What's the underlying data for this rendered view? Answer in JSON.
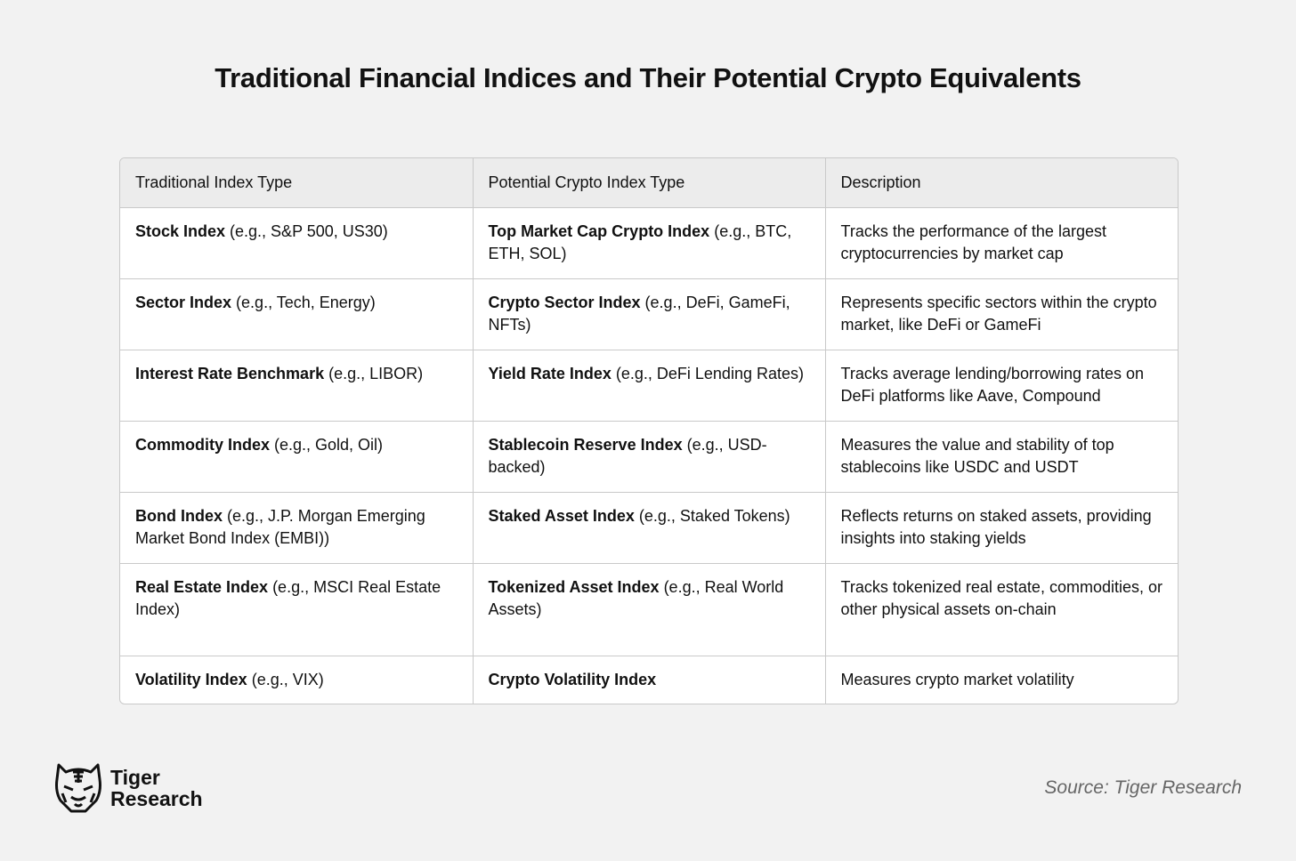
{
  "title": "Traditional Financial Indices and Their Potential Crypto Equivalents",
  "table": {
    "headers": [
      "Traditional Index Type",
      "Potential Crypto Index Type",
      "Description"
    ],
    "rows": [
      {
        "cells": [
          {
            "bold": "Stock Index",
            "rest": " (e.g., S&P 500, US30)"
          },
          {
            "bold": "Top Market Cap Crypto Index",
            "rest": " (e.g., BTC, ETH, SOL)"
          },
          {
            "bold": "",
            "rest": "Tracks the performance of the largest cryptocurrencies by market cap"
          }
        ]
      },
      {
        "cells": [
          {
            "bold": "Sector Index",
            "rest": " (e.g., Tech, Energy)"
          },
          {
            "bold": "Crypto Sector Index",
            "rest": " (e.g., DeFi, GameFi, NFTs)"
          },
          {
            "bold": "",
            "rest": "Represents specific sectors within the crypto market, like DeFi or GameFi"
          }
        ]
      },
      {
        "cells": [
          {
            "bold": "Interest Rate Benchmark",
            "rest": " (e.g., LIBOR)"
          },
          {
            "bold": "Yield Rate Index",
            "rest": " (e.g., DeFi Lending Rates)"
          },
          {
            "bold": "",
            "rest": "Tracks average lending/borrowing rates on DeFi platforms like Aave, Compound"
          }
        ]
      },
      {
        "cells": [
          {
            "bold": "Commodity Index",
            "rest": " (e.g., Gold, Oil)"
          },
          {
            "bold": "Stablecoin Reserve Index",
            "rest": " (e.g., USD-backed)"
          },
          {
            "bold": "",
            "rest": "Measures the value and stability of top stablecoins like USDC and USDT"
          }
        ]
      },
      {
        "cells": [
          {
            "bold": "Bond Index",
            "rest": " (e.g., J.P. Morgan Emerging Market Bond Index (EMBI))"
          },
          {
            "bold": "Staked Asset Index",
            "rest": " (e.g., Staked Tokens)"
          },
          {
            "bold": "",
            "rest": "Reflects returns on staked assets, providing insights into staking yields"
          }
        ]
      },
      {
        "cells": [
          {
            "bold": "Real Estate Index",
            "rest": " (e.g., MSCI Real Estate Index)"
          },
          {
            "bold": "Tokenized Asset Index",
            "rest": " (e.g., Real World Assets)"
          },
          {
            "bold": "",
            "rest": "Tracks tokenized real estate, commodities, or other physical assets on-chain"
          }
        ]
      },
      {
        "cells": [
          {
            "bold": "Volatility Index",
            "rest": " (e.g., VIX)"
          },
          {
            "bold": "Crypto Volatility Index",
            "rest": ""
          },
          {
            "bold": "",
            "rest": "Measures crypto market volatility"
          }
        ]
      }
    ]
  },
  "logo": {
    "line1": "Tiger",
    "line2": "Research",
    "icon": "tiger-head-icon"
  },
  "source": "Source: Tiger Research"
}
